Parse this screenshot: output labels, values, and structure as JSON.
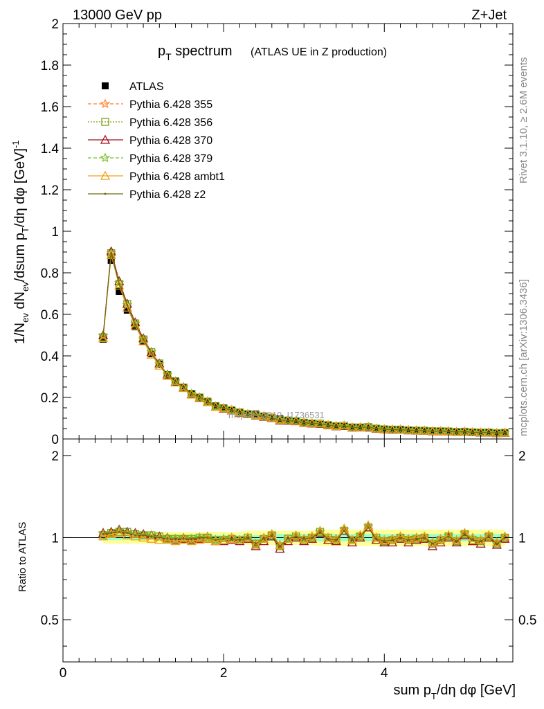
{
  "header": {
    "left": "13000 GeV pp",
    "right": "Z+Jet"
  },
  "side_labels": {
    "rivet": "Rivet 3.1.10, ≥ 2.6M events",
    "mcplots": "mcplots.cern.ch [arXiv:1306.3436]"
  },
  "watermark": "mcplots 2019_I1736531",
  "colors": {
    "atlas": "#000000",
    "p355": "#ff7f27",
    "p356": "#7fa010",
    "p370": "#a0101e",
    "p379": "#78c028",
    "ambt1": "#f0a018",
    "z2": "#6b6b12",
    "band_outer": "#ffff99",
    "band_inner": "#99ffcc"
  },
  "chart_data": [
    {
      "type": "line",
      "title": "p_T spectrum (ATLAS UE in Z production)",
      "title_main": "p",
      "title_sub": "T",
      "title_main2": " spectrum",
      "title_extra": "(ATLAS UE in Z production)",
      "ylabel": "1/N_ev dN_ev/dsum p_T/dη dφ [GeV]^-1",
      "ylabel_parts": {
        "a": "1/N",
        "b": "ev",
        "c": " dN",
        "d": "ev",
        "e": "/dsum p",
        "f": "T",
        "g": "/dη dφ  [GeV]",
        "h": "-1"
      },
      "xlim": [
        0,
        5.6
      ],
      "ylim": [
        0,
        2
      ],
      "yticks": [
        "0",
        "0.2",
        "0.4",
        "0.6",
        "0.8",
        "1",
        "1.2",
        "1.4",
        "1.6",
        "1.8",
        "2"
      ],
      "legend_position": "top-left",
      "x": [
        0.5,
        0.6,
        0.7,
        0.8,
        0.9,
        1.0,
        1.1,
        1.2,
        1.3,
        1.4,
        1.5,
        1.6,
        1.7,
        1.8,
        1.9,
        2.0,
        2.1,
        2.2,
        2.3,
        2.4,
        2.5,
        2.6,
        2.7,
        2.8,
        2.9,
        3.0,
        3.1,
        3.2,
        3.3,
        3.4,
        3.5,
        3.6,
        3.7,
        3.8,
        3.9,
        4.0,
        4.1,
        4.2,
        4.3,
        4.4,
        4.5,
        4.6,
        4.7,
        4.8,
        4.9,
        5.0,
        5.1,
        5.2,
        5.3,
        5.4,
        5.5
      ],
      "series": [
        {
          "name": "ATLAS",
          "key": "atlas",
          "marker": "square",
          "values": [
            0.48,
            0.86,
            0.71,
            0.62,
            0.54,
            0.47,
            0.41,
            0.36,
            0.31,
            0.28,
            0.25,
            0.22,
            0.2,
            0.18,
            0.16,
            0.15,
            0.14,
            0.13,
            0.12,
            0.12,
            0.11,
            0.1,
            0.097,
            0.09,
            0.085,
            0.08,
            0.075,
            0.07,
            0.067,
            0.063,
            0.06,
            0.057,
            0.055,
            0.053,
            0.05,
            0.048,
            0.046,
            0.045,
            0.043,
            0.041,
            0.04,
            0.039,
            0.038,
            0.036,
            0.035,
            0.034,
            0.033,
            0.032,
            0.031,
            0.03,
            0.03
          ]
        },
        {
          "name": "Pythia 6.428 355",
          "key": "p355",
          "marker": "star",
          "dash": "5,3",
          "ratio": [
            1.04,
            1.03,
            1.06,
            1.04,
            1.03,
            1.03,
            1.02,
            1.0,
            1.0,
            0.99,
            1.0,
            0.98,
            1.0,
            1.01,
            0.98,
            0.99,
            1.0,
            0.98,
            1.0,
            0.95,
            1.0,
            1.03,
            0.94,
            0.99,
            1.01,
            0.99,
            1.01,
            1.05,
            1.0,
            0.99,
            1.07,
            0.98,
            1.02,
            1.1,
            1.0,
            0.98,
            0.99,
            1.01,
            0.99,
            1.0,
            1.01,
            0.95,
            0.99,
            1.02,
            0.98,
            1.04,
            0.99,
            0.98,
            1.02,
            0.96,
            1.01
          ]
        },
        {
          "name": "Pythia 6.428 356",
          "key": "p356",
          "marker": "square-open",
          "dash": "2,2",
          "ratio": [
            1.02,
            1.04,
            1.05,
            1.05,
            1.03,
            1.02,
            1.02,
            1.01,
            0.99,
            0.99,
            0.99,
            0.99,
            1.0,
            1.0,
            0.98,
            0.98,
            0.99,
            0.98,
            1.0,
            0.95,
            0.99,
            1.02,
            0.93,
            0.99,
            1.01,
            0.98,
            1.0,
            1.05,
            1.0,
            0.98,
            1.06,
            0.98,
            1.01,
            1.09,
            1.0,
            0.97,
            0.98,
            1.0,
            0.98,
            0.99,
            1.0,
            0.95,
            0.98,
            1.01,
            0.97,
            1.03,
            0.98,
            0.97,
            1.01,
            0.95,
            1.0
          ]
        },
        {
          "name": "Pythia 6.428 370",
          "key": "p370",
          "marker": "triangle-open",
          "ratio": [
            1.04,
            1.05,
            1.07,
            1.05,
            1.04,
            1.03,
            1.02,
            1.01,
            1.0,
            0.98,
            0.99,
            0.98,
            0.99,
            0.99,
            0.97,
            0.97,
            0.98,
            0.97,
            0.99,
            0.93,
            0.97,
            1.01,
            0.91,
            0.97,
            1.0,
            0.97,
            0.99,
            1.04,
            0.98,
            0.97,
            1.06,
            0.96,
            1.0,
            1.09,
            0.98,
            0.96,
            0.96,
            0.99,
            0.96,
            0.98,
            0.99,
            0.93,
            0.96,
            1.0,
            0.96,
            1.02,
            0.97,
            0.95,
            1.0,
            0.94,
            0.99
          ]
        },
        {
          "name": "Pythia 6.428 379",
          "key": "p379",
          "marker": "star",
          "dash": "5,3",
          "ratio": [
            1.03,
            1.04,
            1.06,
            1.04,
            1.03,
            1.02,
            1.02,
            1.0,
            1.0,
            0.99,
            0.99,
            0.99,
            1.0,
            1.0,
            0.98,
            0.99,
            0.99,
            0.98,
            1.0,
            0.94,
            0.99,
            1.02,
            0.93,
            0.99,
            1.01,
            0.99,
            1.0,
            1.05,
            0.99,
            0.98,
            1.07,
            0.98,
            1.02,
            1.1,
            0.99,
            0.97,
            0.98,
            1.0,
            0.98,
            0.99,
            1.0,
            0.95,
            0.98,
            1.02,
            0.97,
            1.03,
            0.99,
            0.97,
            1.01,
            0.95,
            1.0
          ]
        },
        {
          "name": "Pythia 6.428 ambt1",
          "key": "ambt1",
          "marker": "triangle-open",
          "ratio": [
            1.01,
            1.03,
            1.04,
            1.02,
            1.01,
            1.0,
            0.99,
            0.98,
            0.98,
            0.97,
            0.98,
            0.97,
            0.98,
            0.99,
            0.97,
            0.98,
            0.99,
            0.98,
            1.0,
            0.94,
            0.99,
            1.03,
            0.94,
            0.99,
            1.02,
            0.99,
            1.01,
            1.06,
            1.0,
            0.99,
            1.08,
            0.98,
            1.02,
            1.11,
            1.0,
            0.98,
            0.99,
            1.01,
            0.99,
            1.0,
            1.01,
            0.96,
            0.99,
            1.02,
            0.98,
            1.04,
            1.0,
            0.98,
            1.02,
            0.96,
            1.01
          ]
        },
        {
          "name": "Pythia 6.428 z2",
          "key": "z2",
          "marker": "dot",
          "ratio": [
            1.03,
            1.04,
            1.05,
            1.04,
            1.02,
            1.02,
            1.01,
            1.0,
            0.99,
            0.99,
            0.99,
            0.99,
            1.0,
            1.0,
            0.98,
            0.99,
            0.99,
            0.98,
            1.0,
            0.95,
            0.99,
            1.02,
            0.93,
            0.99,
            1.01,
            0.99,
            1.0,
            1.05,
            0.99,
            0.98,
            1.06,
            0.98,
            1.01,
            1.09,
            0.99,
            0.97,
            0.98,
            1.0,
            0.98,
            0.99,
            1.0,
            0.95,
            0.98,
            1.01,
            0.97,
            1.03,
            0.98,
            0.97,
            1.01,
            0.95,
            1.0
          ]
        }
      ]
    },
    {
      "type": "line",
      "ylabel": "Ratio to ATLAS",
      "xlabel": "sum p_T/dη dφ [GeV]",
      "xlabel_parts": {
        "a": "sum p",
        "b": "T",
        "c": "/dη dφ [GeV]"
      },
      "xlim": [
        0,
        5.6
      ],
      "ylim": [
        0.35,
        2.3
      ],
      "log_scale": true,
      "xticks": [
        "0",
        "2",
        "4"
      ],
      "yticks": [
        "0.5",
        "1",
        "2"
      ],
      "band_outer_half": [
        0.05,
        0.05,
        0.05,
        0.05,
        0.05,
        0.05,
        0.05,
        0.05,
        0.05,
        0.05,
        0.05,
        0.05,
        0.05,
        0.05,
        0.05,
        0.05,
        0.05,
        0.05,
        0.06,
        0.06,
        0.06,
        0.06,
        0.06,
        0.06,
        0.06,
        0.06,
        0.06,
        0.07,
        0.07,
        0.07,
        0.07,
        0.07,
        0.07,
        0.07,
        0.07,
        0.07,
        0.07,
        0.07,
        0.07,
        0.07,
        0.07,
        0.07,
        0.07,
        0.07,
        0.07,
        0.07,
        0.07,
        0.07,
        0.07,
        0.07,
        0.07
      ],
      "band_inner_half": [
        0.02,
        0.02,
        0.02,
        0.02,
        0.02,
        0.02,
        0.02,
        0.02,
        0.02,
        0.02,
        0.02,
        0.02,
        0.02,
        0.02,
        0.02,
        0.02,
        0.02,
        0.02,
        0.02,
        0.02,
        0.02,
        0.03,
        0.03,
        0.03,
        0.03,
        0.03,
        0.03,
        0.03,
        0.03,
        0.03,
        0.03,
        0.03,
        0.03,
        0.03,
        0.03,
        0.03,
        0.03,
        0.03,
        0.03,
        0.03,
        0.03,
        0.03,
        0.03,
        0.03,
        0.03,
        0.03,
        0.03,
        0.03,
        0.03,
        0.03,
        0.03
      ]
    }
  ]
}
